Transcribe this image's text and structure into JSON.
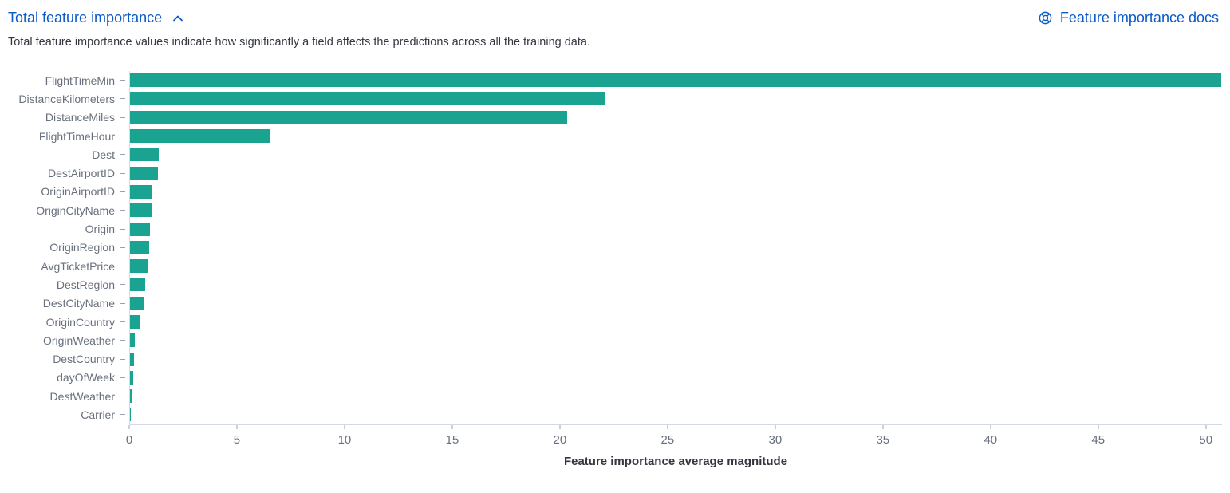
{
  "panel": {
    "title": "Total feature importance",
    "docs_link_label": "Feature importance docs",
    "description": "Total feature importance values indicate how significantly a field affects the predictions across all the training data."
  },
  "colors": {
    "bar": "#1ba392",
    "link": "#0b5bc7",
    "axis_text": "#69707d",
    "body_text": "#343741",
    "axis_line": "#d3dae6"
  },
  "icons": {
    "collapse": "chevron-up",
    "docs": "help-life-ring"
  },
  "chart_data": {
    "type": "bar",
    "orientation": "horizontal",
    "title": "",
    "xlabel": "Feature importance average magnitude",
    "ylabel": "",
    "grid": false,
    "legend": false,
    "x_ticks": [
      0,
      5,
      10,
      15,
      20,
      25,
      30,
      35,
      40,
      45,
      50
    ],
    "xlim": [
      0,
      50.75
    ],
    "categories": [
      "FlightTimeMin",
      "DistanceKilometers",
      "DistanceMiles",
      "FlightTimeHour",
      "Dest",
      "DestAirportID",
      "OriginAirportID",
      "OriginCityName",
      "Origin",
      "OriginRegion",
      "AvgTicketPrice",
      "DestRegion",
      "DestCityName",
      "OriginCountry",
      "OriginWeather",
      "DestCountry",
      "dayOfWeek",
      "DestWeather",
      "Carrier"
    ],
    "values": [
      50.7,
      22.1,
      20.3,
      6.5,
      1.33,
      1.3,
      1.04,
      1.0,
      0.93,
      0.89,
      0.85,
      0.7,
      0.67,
      0.44,
      0.22,
      0.19,
      0.15,
      0.11,
      0.04
    ]
  }
}
